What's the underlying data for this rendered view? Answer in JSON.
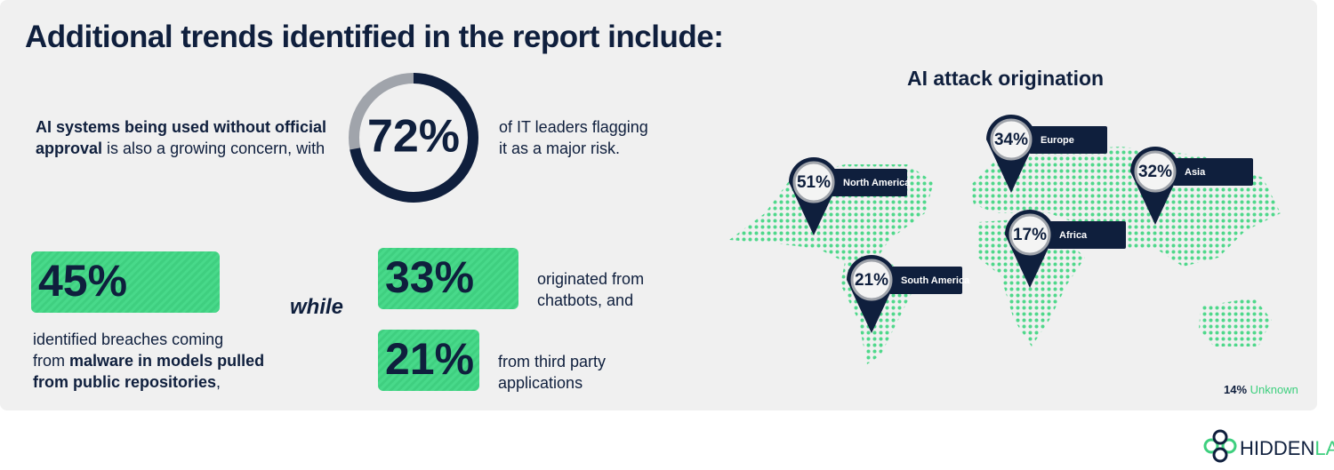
{
  "header": {
    "title": "Additional trends identified in the report include:"
  },
  "concern": {
    "lines": [
      [
        {
          "text": "AI systems being used without official",
          "bold": true
        }
      ],
      [
        {
          "text": "approval",
          "bold": true
        },
        {
          "text": " is also a growing concern, with",
          "bold": false
        }
      ]
    ]
  },
  "stat": {
    "value": 72,
    "label": "72%",
    "max": 100,
    "lines": [
      "of IT leaders flagging",
      "it as a major risk."
    ]
  },
  "breaches": {
    "label": "45%",
    "lines": [
      [
        {
          "text": "identified breaches coming",
          "bold": false
        }
      ],
      [
        {
          "text": "from ",
          "bold": false
        },
        {
          "text": "malware in models pulled",
          "bold": true
        }
      ],
      [
        {
          "text": "from public repositories",
          "bold": true
        },
        {
          "text": ",",
          "bold": false
        }
      ]
    ]
  },
  "connector": "while",
  "chatbots": {
    "label": "33%",
    "lines": [
      "originated from",
      "chatbots, and"
    ]
  },
  "third_party": {
    "label": "21%",
    "lines": [
      "from third party",
      "applications"
    ]
  },
  "map": {
    "title": "AI attack origination",
    "regions": [
      {
        "name": "North America",
        "label": "51%"
      },
      {
        "name": "Europe",
        "label": "34%"
      },
      {
        "name": "Asia",
        "label": "32%"
      },
      {
        "name": "Africa",
        "label": "17%"
      },
      {
        "name": "South America",
        "label": "21%"
      }
    ],
    "unknown": {
      "label": "14%",
      "text": "Unknown"
    }
  },
  "logo": {
    "parts": [
      "HIDDEN",
      "LAYER"
    ]
  }
}
